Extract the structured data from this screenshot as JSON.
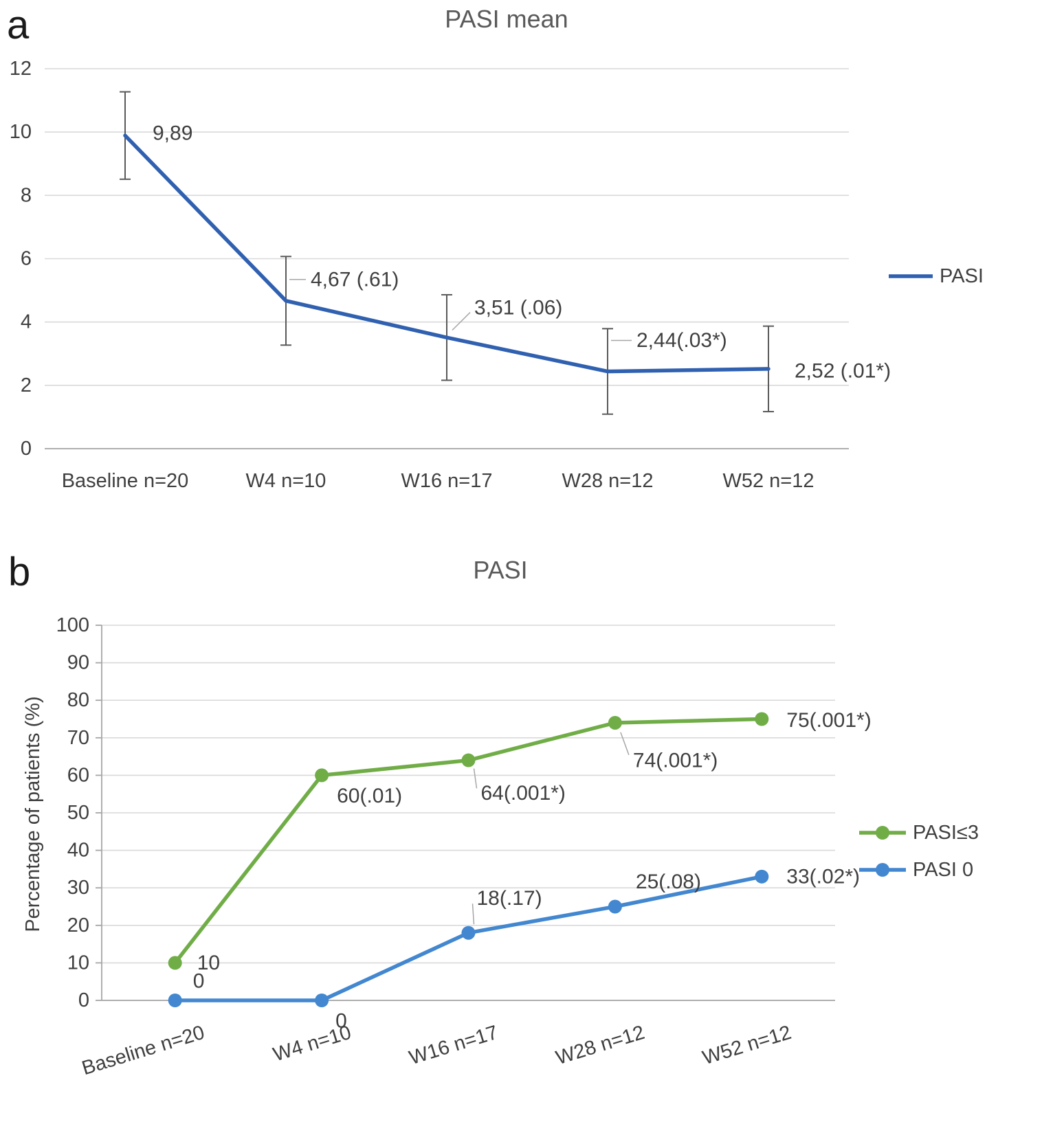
{
  "chart_data": [
    {
      "panel": "a",
      "type": "line",
      "title": "PASI mean",
      "categories": [
        "Baseline n=20",
        "W4 n=10",
        "W16 n=17",
        "W28 n=12",
        "W52 n=12"
      ],
      "series": [
        {
          "name": "PASI",
          "color": "#3060b0",
          "values": [
            9.89,
            4.67,
            3.51,
            2.44,
            2.52
          ],
          "error": [
            1.38,
            1.4,
            1.35,
            1.35,
            1.35
          ],
          "point_labels": [
            "9,89",
            "4,67 (.61)",
            "3,51 (.06)",
            "2,44(.03*)",
            "2,52 (.01*)"
          ]
        }
      ],
      "ylim": [
        0,
        12
      ],
      "ytick_step": 2,
      "grid": true,
      "legend": [
        {
          "label": "PASI",
          "color": "#3060b0"
        }
      ],
      "legend_position": "right"
    },
    {
      "panel": "b",
      "type": "line",
      "title": "PASI",
      "ylabel": "Percentage of patients (%)",
      "categories": [
        "Baseline n=20",
        "W4 n=10",
        "W16 n=17",
        "W28 n=12",
        "W52 n=12"
      ],
      "series": [
        {
          "name": "PASI≤3",
          "color": "#70ad47",
          "values": [
            10,
            60,
            64,
            74,
            75
          ],
          "point_labels": [
            "10",
            "60(.01)",
            "64(.001*)",
            "74(.001*)",
            "75(.001*)"
          ]
        },
        {
          "name": "PASI 0",
          "color": "#4287cf",
          "values": [
            0,
            0,
            18,
            25,
            33
          ],
          "point_labels": [
            "0",
            "0",
            "18(.17)",
            "25(.08)",
            "33(.02*)"
          ]
        }
      ],
      "ylim": [
        0,
        100
      ],
      "ytick_step": 10,
      "grid": true,
      "legend": [
        {
          "label": "PASI≤3",
          "color": "#70ad47"
        },
        {
          "label": "PASI 0",
          "color": "#4287cf"
        }
      ],
      "legend_position": "right"
    }
  ],
  "colors": {
    "text": "#3f3f3f",
    "title": "#595959",
    "grid": "#d9d9d9",
    "axis": "#a6a6a6",
    "error_bar": "#595959"
  }
}
